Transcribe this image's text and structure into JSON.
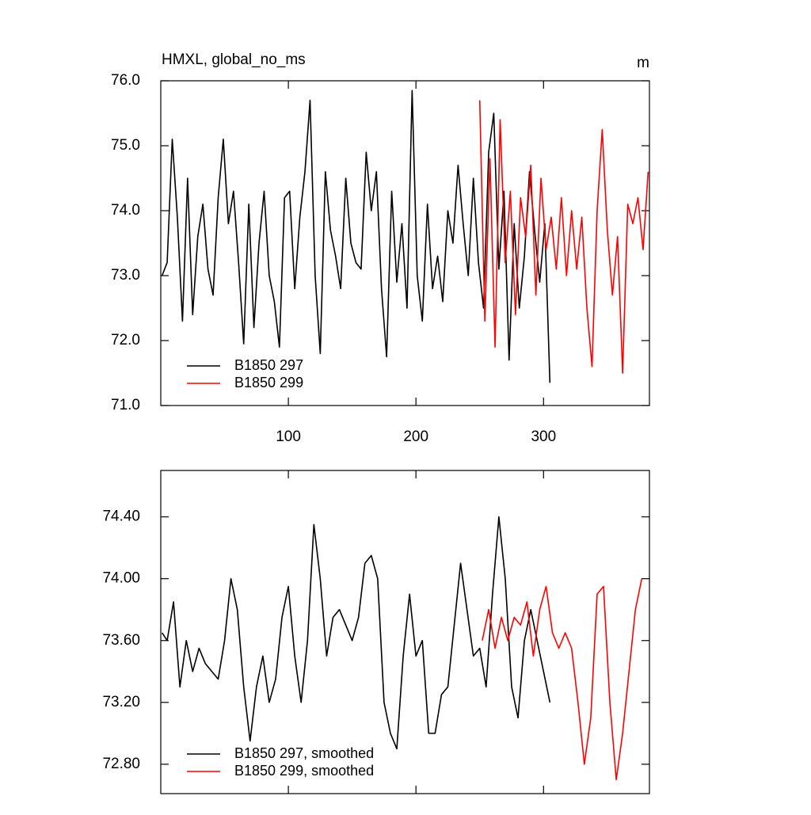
{
  "chart_data": [
    {
      "type": "line",
      "title": "HMXL, global_no_ms",
      "unit_label": "m",
      "xlim": [
        0,
        383
      ],
      "xticks": [
        100,
        200,
        300
      ],
      "show_x_tick_labels": true,
      "ylim": [
        71,
        76
      ],
      "yticks": [
        {
          "value": 71,
          "label": "71.0"
        },
        {
          "value": 72,
          "label": "72.0"
        },
        {
          "value": 73,
          "label": "73.0"
        },
        {
          "value": 74,
          "label": "74.0"
        },
        {
          "value": 75,
          "label": "75.0"
        },
        {
          "value": 76,
          "label": "76.0"
        }
      ],
      "legend": "lower left",
      "series": [
        {
          "name": "B1850 297",
          "color": "#000000",
          "x": [
            1,
            5,
            9,
            13,
            17,
            21,
            25,
            29,
            33,
            37,
            41,
            45,
            49,
            53,
            57,
            61,
            65,
            69,
            73,
            77,
            81,
            85,
            89,
            93,
            97,
            101,
            105,
            109,
            113,
            117,
            121,
            125,
            129,
            133,
            137,
            141,
            145,
            149,
            153,
            157,
            161,
            165,
            169,
            173,
            177,
            181,
            185,
            189,
            193,
            197,
            201,
            205,
            209,
            213,
            217,
            221,
            225,
            229,
            233,
            237,
            241,
            245,
            249,
            253,
            257,
            261,
            265,
            269,
            273,
            277,
            281,
            285,
            289,
            293,
            297,
            301,
            305
          ],
          "values": [
            73.0,
            73.2,
            75.1,
            73.9,
            72.3,
            74.5,
            72.4,
            73.6,
            74.1,
            73.1,
            72.7,
            74.2,
            75.1,
            73.8,
            74.3,
            73.2,
            71.95,
            74.1,
            72.2,
            73.5,
            74.3,
            73.0,
            72.6,
            71.9,
            74.2,
            74.3,
            72.8,
            73.9,
            74.6,
            75.7,
            73.0,
            71.8,
            74.6,
            73.7,
            73.3,
            72.8,
            74.5,
            73.5,
            73.2,
            73.1,
            74.9,
            74.0,
            74.6,
            72.8,
            71.75,
            74.3,
            72.9,
            73.8,
            72.5,
            75.85,
            73.0,
            72.3,
            74.1,
            72.8,
            73.3,
            72.6,
            74.0,
            73.5,
            74.7,
            73.8,
            73.0,
            74.5,
            73.2,
            72.5,
            74.9,
            75.5,
            73.1,
            74.3,
            71.7,
            73.8,
            72.5,
            73.3,
            74.6,
            73.7,
            72.9,
            73.8,
            71.35
          ]
        },
        {
          "name": "B1850 299",
          "color": "#ff0000",
          "x": [
            250,
            254,
            258,
            262,
            266,
            270,
            274,
            278,
            282,
            286,
            290,
            294,
            298,
            302,
            306,
            310,
            314,
            318,
            322,
            326,
            330,
            334,
            338,
            342,
            346,
            350,
            354,
            358,
            362,
            366,
            370,
            374,
            378,
            382
          ],
          "values": [
            75.7,
            72.3,
            74.8,
            71.9,
            75.4,
            73.2,
            74.3,
            72.4,
            74.2,
            73.6,
            74.7,
            72.7,
            74.5,
            73.4,
            73.9,
            73.1,
            74.2,
            73.0,
            74.0,
            73.1,
            73.9,
            72.5,
            71.6,
            74.0,
            75.25,
            73.7,
            72.7,
            73.6,
            71.5,
            74.1,
            73.8,
            74.2,
            73.4,
            74.6
          ]
        }
      ]
    },
    {
      "type": "line",
      "xlim": [
        0,
        383
      ],
      "xticks": [
        100,
        200,
        300
      ],
      "show_x_tick_labels": false,
      "ylim": [
        72.61,
        74.7
      ],
      "yticks": [
        {
          "value": 72.8,
          "label": "72.80"
        },
        {
          "value": 73.2,
          "label": "73.20"
        },
        {
          "value": 73.6,
          "label": "73.60"
        },
        {
          "value": 74.0,
          "label": "74.00"
        },
        {
          "value": 74.4,
          "label": "74.40"
        }
      ],
      "legend": "lower left",
      "series": [
        {
          "name": "B1850 297, smoothed",
          "color": "#000000",
          "x": [
            1,
            5,
            10,
            15,
            20,
            25,
            30,
            35,
            40,
            45,
            50,
            55,
            60,
            65,
            70,
            75,
            80,
            85,
            90,
            95,
            100,
            105,
            110,
            115,
            120,
            125,
            130,
            135,
            140,
            145,
            150,
            155,
            160,
            165,
            170,
            175,
            180,
            185,
            190,
            195,
            200,
            205,
            210,
            215,
            220,
            225,
            230,
            235,
            240,
            245,
            250,
            255,
            260,
            265,
            270,
            275,
            280,
            285,
            290,
            295,
            300,
            305
          ],
          "values": [
            73.65,
            73.6,
            73.85,
            73.3,
            73.6,
            73.4,
            73.55,
            73.45,
            73.4,
            73.35,
            73.6,
            74.0,
            73.8,
            73.3,
            72.95,
            73.3,
            73.5,
            73.2,
            73.35,
            73.75,
            73.95,
            73.5,
            73.2,
            73.6,
            74.35,
            74.0,
            73.5,
            73.75,
            73.8,
            73.7,
            73.6,
            73.75,
            74.1,
            74.15,
            74.0,
            73.2,
            73.0,
            72.9,
            73.5,
            73.9,
            73.5,
            73.6,
            73.0,
            73.0,
            73.25,
            73.3,
            73.7,
            74.1,
            73.8,
            73.5,
            73.55,
            73.3,
            73.9,
            74.4,
            74.0,
            73.3,
            73.1,
            73.6,
            73.8,
            73.6,
            73.4,
            73.2
          ]
        },
        {
          "name": "B1850 299, smoothed",
          "color": "#ff0000",
          "x": [
            252,
            257,
            262,
            267,
            272,
            277,
            282,
            287,
            292,
            297,
            302,
            307,
            312,
            317,
            322,
            327,
            332,
            337,
            342,
            347,
            352,
            357,
            362,
            367,
            372,
            377
          ],
          "values": [
            73.6,
            73.8,
            73.55,
            73.75,
            73.6,
            73.75,
            73.7,
            73.85,
            73.5,
            73.8,
            73.95,
            73.65,
            73.55,
            73.65,
            73.55,
            73.2,
            72.8,
            73.1,
            73.9,
            73.95,
            73.2,
            72.7,
            73.0,
            73.4,
            73.8,
            74.0
          ]
        }
      ]
    }
  ]
}
